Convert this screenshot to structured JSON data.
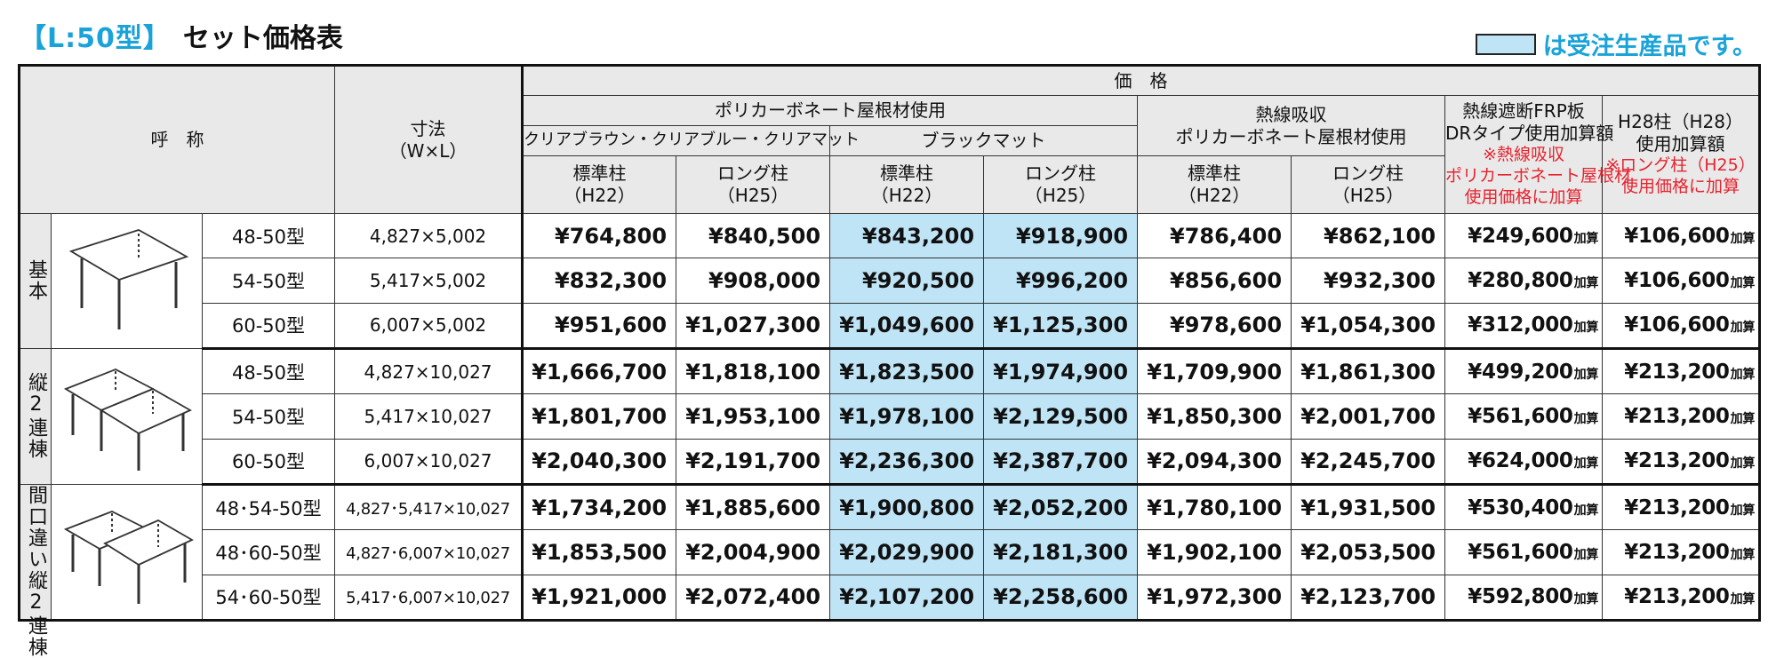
{
  "title": {
    "type_label": "【L:50型】",
    "main": "セット価格表"
  },
  "legend": {
    "text": "は受注生産品です。",
    "swatch_color": "#bfe4f6"
  },
  "header": {
    "name": "呼　称",
    "size": "寸法",
    "size_sub": "（W×L）",
    "price": "価　格",
    "polycarbonate": "ポリカーボネート屋根材使用",
    "clear": "クリアブラウン・クリアブルー・クリアマット",
    "black": "ブラックマット",
    "heat_line1": "熱線吸収",
    "heat_line2": "ポリカーボネート屋根材使用",
    "frp_line1": "熱線遮断FRP板",
    "frp_line2": "DRタイプ使用加算額",
    "frp_note1": "※熱線吸収",
    "frp_note2": "ポリカーボネート屋根材",
    "frp_note3": "使用価格に加算",
    "h28_line1": "H28柱（H28）",
    "h28_line2": "使用加算額",
    "h28_note1": "※ロング柱（H25）",
    "h28_note2": "使用価格に加算",
    "std_col": "標準柱",
    "std_sub": "（H22）",
    "long_col": "ロング柱",
    "long_sub": "（H25）"
  },
  "add_suffix": "加算",
  "groups": [
    {
      "label": "基本",
      "icon": "single-carport-icon",
      "rows": [
        {
          "model": "48-50型",
          "size": "4,827×5,002",
          "prices": [
            "¥764,800",
            "¥840,500",
            "¥843,200",
            "¥918,900",
            "¥786,400",
            "¥862,100",
            "¥249,600",
            "¥106,600"
          ]
        },
        {
          "model": "54-50型",
          "size": "5,417×5,002",
          "prices": [
            "¥832,300",
            "¥908,000",
            "¥920,500",
            "¥996,200",
            "¥856,600",
            "¥932,300",
            "¥280,800",
            "¥106,600"
          ]
        },
        {
          "model": "60-50型",
          "size": "6,007×5,002",
          "prices": [
            "¥951,600",
            "¥1,027,300",
            "¥1,049,600",
            "¥1,125,300",
            "¥978,600",
            "¥1,054,300",
            "¥312,000",
            "¥106,600"
          ]
        }
      ]
    },
    {
      "label": "縦2連棟",
      "icon": "double-carport-icon",
      "rows": [
        {
          "model": "48-50型",
          "size": "4,827×10,027",
          "prices": [
            "¥1,666,700",
            "¥1,818,100",
            "¥1,823,500",
            "¥1,974,900",
            "¥1,709,900",
            "¥1,861,300",
            "¥499,200",
            "¥213,200"
          ]
        },
        {
          "model": "54-50型",
          "size": "5,417×10,027",
          "prices": [
            "¥1,801,700",
            "¥1,953,100",
            "¥1,978,100",
            "¥2,129,500",
            "¥1,850,300",
            "¥2,001,700",
            "¥561,600",
            "¥213,200"
          ]
        },
        {
          "model": "60-50型",
          "size": "6,007×10,027",
          "prices": [
            "¥2,040,300",
            "¥2,191,700",
            "¥2,236,300",
            "¥2,387,700",
            "¥2,094,300",
            "¥2,245,700",
            "¥624,000",
            "¥213,200"
          ]
        }
      ]
    },
    {
      "label": "間口違い縦2連棟",
      "icon": "offset-double-carport-icon",
      "rows": [
        {
          "model": "48･54-50型",
          "size": "4,827･5,417×10,027",
          "prices": [
            "¥1,734,200",
            "¥1,885,600",
            "¥1,900,800",
            "¥2,052,200",
            "¥1,780,100",
            "¥1,931,500",
            "¥530,400",
            "¥213,200"
          ]
        },
        {
          "model": "48･60-50型",
          "size": "4,827･6,007×10,027",
          "prices": [
            "¥1,853,500",
            "¥2,004,900",
            "¥2,029,900",
            "¥2,181,300",
            "¥1,902,100",
            "¥2,053,500",
            "¥561,600",
            "¥213,200"
          ]
        },
        {
          "model": "54･60-50型",
          "size": "5,417･6,007×10,027",
          "prices": [
            "¥1,921,000",
            "¥2,072,400",
            "¥2,107,200",
            "¥2,258,600",
            "¥1,972,300",
            "¥2,123,700",
            "¥592,800",
            "¥213,200"
          ]
        }
      ]
    }
  ]
}
